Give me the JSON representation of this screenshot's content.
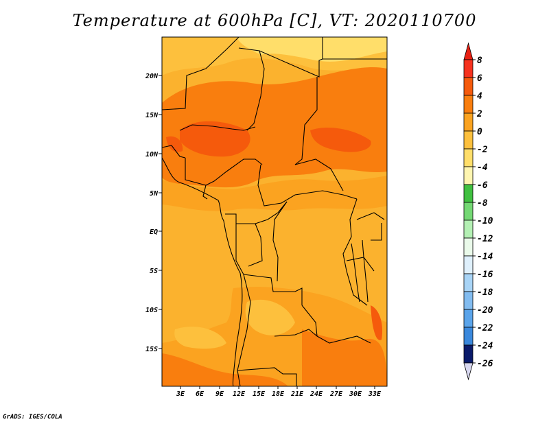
{
  "title": "Temperature at 600hPa [C], VT: 2020110700",
  "credit": "GrADS: IGES/COLA",
  "map": {
    "lat_ticks": [
      "20N",
      "15N",
      "10N",
      "5N",
      "EQ",
      "5S",
      "10S",
      "15S"
    ],
    "lon_ticks": [
      "3E",
      "6E",
      "9E",
      "12E",
      "15E",
      "18E",
      "21E",
      "24E",
      "27E",
      "30E",
      "33E"
    ]
  },
  "colorbar": {
    "labels": [
      "8",
      "6",
      "4",
      "2",
      "0",
      "-2",
      "-4",
      "-6",
      "-8",
      "-10",
      "-12",
      "-14",
      "-16",
      "-18",
      "-20",
      "-22",
      "-24",
      "-26"
    ],
    "colors": [
      "#f6321e",
      "#f55a0c",
      "#f97e0e",
      "#fba320",
      "#fdc03d",
      "#ffde6a",
      "#fef5b0",
      "#40c040",
      "#74d874",
      "#b4f0b4",
      "#eafaea",
      "#dff0fc",
      "#a8d4f6",
      "#82bcf0",
      "#5aa4ea",
      "#3a88dc",
      "#1e64c8",
      "#0a3a9a"
    ],
    "top_arrow_color": "#e82012",
    "bottom_arrow_color": "#d8d8f0",
    "bottom_segment_color": "#0a1a6a"
  }
}
